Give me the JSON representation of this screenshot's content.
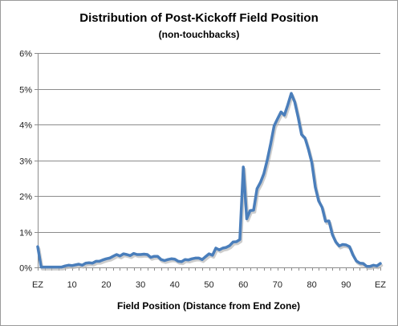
{
  "chart_data": {
    "type": "line",
    "title": "Distribution of Post-Kickoff Field Position",
    "subtitle": "(non-touchbacks)",
    "xlabel": "Field Position (Distance from End Zone)",
    "ylabel": "",
    "xlim": [
      0,
      100
    ],
    "ylim": [
      0,
      0.06
    ],
    "x_ticks": [
      {
        "value": 0,
        "label": "EZ"
      },
      {
        "value": 10,
        "label": "10"
      },
      {
        "value": 20,
        "label": "20"
      },
      {
        "value": 30,
        "label": "30"
      },
      {
        "value": 40,
        "label": "40"
      },
      {
        "value": 50,
        "label": "50"
      },
      {
        "value": 60,
        "label": "60"
      },
      {
        "value": 70,
        "label": "70"
      },
      {
        "value": 80,
        "label": "80"
      },
      {
        "value": 90,
        "label": "90"
      },
      {
        "value": 100,
        "label": "EZ"
      }
    ],
    "y_ticks": [
      {
        "value": 0,
        "label": "0%"
      },
      {
        "value": 0.01,
        "label": "1%"
      },
      {
        "value": 0.02,
        "label": "2%"
      },
      {
        "value": 0.03,
        "label": "3%"
      },
      {
        "value": 0.04,
        "label": "4%"
      },
      {
        "value": 0.05,
        "label": "5%"
      },
      {
        "value": 0.06,
        "label": "6%"
      }
    ],
    "grid": "horizontal",
    "legend": "none",
    "series": [
      {
        "color": "#4a7ebb",
        "points": [
          [
            0,
            0.0058
          ],
          [
            1,
            0.0001
          ],
          [
            2,
            0.0001
          ],
          [
            3,
            0.0001
          ],
          [
            4,
            0.0001
          ],
          [
            5,
            0.0001
          ],
          [
            6,
            0.0001
          ],
          [
            7,
            0.0001
          ],
          [
            8,
            0.0004
          ],
          [
            9,
            0.0006
          ],
          [
            10,
            0.0005
          ],
          [
            11,
            0.0007
          ],
          [
            12,
            0.0009
          ],
          [
            13,
            0.0006
          ],
          [
            14,
            0.0012
          ],
          [
            15,
            0.0013
          ],
          [
            16,
            0.0012
          ],
          [
            17,
            0.0017
          ],
          [
            18,
            0.0017
          ],
          [
            19,
            0.0021
          ],
          [
            20,
            0.0024
          ],
          [
            21,
            0.0026
          ],
          [
            22,
            0.0031
          ],
          [
            23,
            0.0036
          ],
          [
            24,
            0.0032
          ],
          [
            25,
            0.0038
          ],
          [
            26,
            0.0036
          ],
          [
            27,
            0.0033
          ],
          [
            28,
            0.0039
          ],
          [
            29,
            0.0036
          ],
          [
            30,
            0.0036
          ],
          [
            31,
            0.0037
          ],
          [
            32,
            0.0036
          ],
          [
            33,
            0.0028
          ],
          [
            34,
            0.0031
          ],
          [
            35,
            0.0031
          ],
          [
            36,
            0.0022
          ],
          [
            37,
            0.0019
          ],
          [
            38,
            0.0022
          ],
          [
            39,
            0.0024
          ],
          [
            40,
            0.0023
          ],
          [
            41,
            0.0017
          ],
          [
            42,
            0.0016
          ],
          [
            43,
            0.0022
          ],
          [
            44,
            0.0021
          ],
          [
            45,
            0.0024
          ],
          [
            46,
            0.0026
          ],
          [
            47,
            0.0026
          ],
          [
            48,
            0.0022
          ],
          [
            49,
            0.003
          ],
          [
            50,
            0.0038
          ],
          [
            51,
            0.0034
          ],
          [
            52,
            0.0054
          ],
          [
            53,
            0.0049
          ],
          [
            54,
            0.0054
          ],
          [
            55,
            0.0056
          ],
          [
            56,
            0.0061
          ],
          [
            57,
            0.0071
          ],
          [
            58,
            0.0072
          ],
          [
            59,
            0.0078
          ],
          [
            60,
            0.0281
          ],
          [
            61,
            0.0136
          ],
          [
            62,
            0.0159
          ],
          [
            63,
            0.016
          ],
          [
            64,
            0.022
          ],
          [
            65,
            0.0238
          ],
          [
            66,
            0.0262
          ],
          [
            67,
            0.0301
          ],
          [
            68,
            0.0347
          ],
          [
            69,
            0.0396
          ],
          [
            70,
            0.0416
          ],
          [
            71,
            0.0435
          ],
          [
            72,
            0.0426
          ],
          [
            73,
            0.0455
          ],
          [
            74,
            0.0487
          ],
          [
            75,
            0.0463
          ],
          [
            76,
            0.0421
          ],
          [
            77,
            0.0372
          ],
          [
            78,
            0.0362
          ],
          [
            79,
            0.0331
          ],
          [
            80,
            0.0293
          ],
          [
            81,
            0.0225
          ],
          [
            82,
            0.0186
          ],
          [
            83,
            0.0168
          ],
          [
            84,
            0.0129
          ],
          [
            85,
            0.013
          ],
          [
            86,
            0.0092
          ],
          [
            87,
            0.0071
          ],
          [
            88,
            0.006
          ],
          [
            89,
            0.0064
          ],
          [
            90,
            0.0063
          ],
          [
            91,
            0.0058
          ],
          [
            92,
            0.0035
          ],
          [
            93,
            0.0018
          ],
          [
            94,
            0.0012
          ],
          [
            95,
            0.0011
          ],
          [
            96,
            0.0003
          ],
          [
            97,
            0.0003
          ],
          [
            98,
            0.0006
          ],
          [
            99,
            0.0004
          ],
          [
            100,
            0.0011
          ]
        ]
      }
    ]
  }
}
